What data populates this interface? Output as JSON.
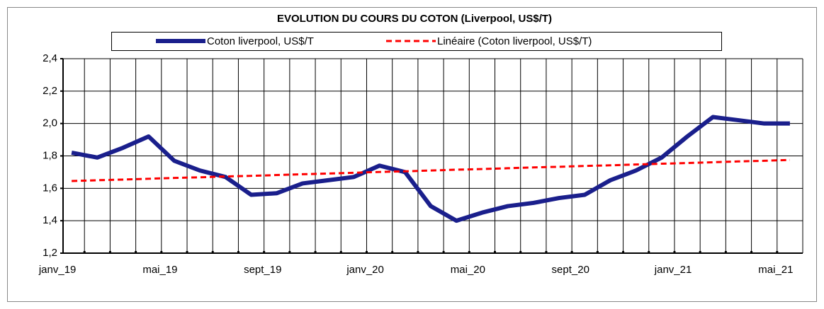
{
  "chart_data": {
    "type": "line",
    "title": "EVOLUTION DU COURS DU COTON  (Liverpool, US$/T)",
    "categories": [
      "janv_19",
      null,
      null,
      null,
      "mai_19",
      null,
      null,
      null,
      "sept_19",
      null,
      null,
      null,
      "janv_20",
      null,
      null,
      null,
      "mai_20",
      null,
      null,
      null,
      "sept_20",
      null,
      null,
      null,
      "janv_21",
      null,
      null,
      null,
      "mai_21"
    ],
    "series": [
      {
        "name": "Coton liverpool, US$/T",
        "color": "#1a1f8c",
        "values": [
          1.82,
          1.79,
          1.85,
          1.92,
          1.77,
          1.71,
          1.67,
          1.56,
          1.57,
          1.63,
          1.65,
          1.67,
          1.74,
          1.7,
          1.49,
          1.4,
          1.45,
          1.49,
          1.51,
          1.54,
          1.56,
          1.65,
          1.71,
          1.79,
          1.92,
          2.04,
          2.02,
          2.0,
          2.0
        ]
      },
      {
        "name": "Linéaire (Coton liverpool, US$/T)",
        "color": "#ff0000",
        "dashed": true,
        "values": [
          1.645,
          1.65,
          1.654,
          1.659,
          1.664,
          1.668,
          1.673,
          1.677,
          1.682,
          1.687,
          1.691,
          1.696,
          1.701,
          1.705,
          1.71,
          1.715,
          1.719,
          1.724,
          1.729,
          1.733,
          1.738,
          1.742,
          1.747,
          1.752,
          1.756,
          1.761,
          1.766,
          1.77,
          1.775
        ]
      }
    ],
    "ylim": [
      1.2,
      2.4
    ],
    "yticks": [
      {
        "value": 1.2,
        "label": "1,2"
      },
      {
        "value": 1.4,
        "label": "1,4"
      },
      {
        "value": 1.6,
        "label": "1,6"
      },
      {
        "value": 1.8,
        "label": "1,8"
      },
      {
        "value": 2.0,
        "label": "2,0"
      },
      {
        "value": 2.2,
        "label": "2,2"
      },
      {
        "value": 2.4,
        "label": "2,4"
      }
    ],
    "grid": true,
    "legend": "top"
  }
}
